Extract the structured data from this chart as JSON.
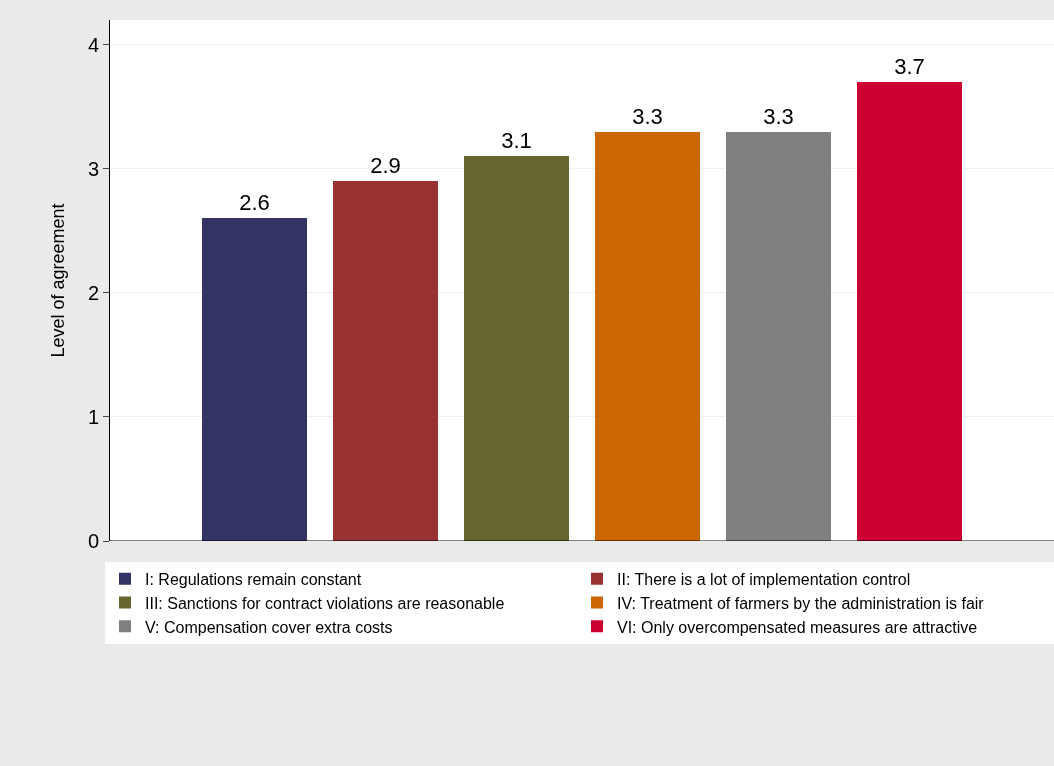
{
  "chart_data": {
    "type": "bar",
    "ylabel": "Level of agreement",
    "categories": [
      null
    ],
    "series": [
      {
        "name": "I: Regulations remain constant",
        "color": "#333366",
        "values": [
          2.6
        ]
      },
      {
        "name": "II: There is a lot of implementation control",
        "color": "#993333",
        "values": [
          2.9
        ]
      },
      {
        "name": "III: Sanctions for contract violations are reasonable",
        "color": "#666633",
        "values": [
          3.1
        ]
      },
      {
        "name": "IV: Treatment of farmers by the administration is fair",
        "color": "#cc6600",
        "values": [
          3.3
        ]
      },
      {
        "name": "V: Compensation cover extra costs",
        "color": "#808080",
        "values": [
          3.3
        ]
      },
      {
        "name": "VI: Only overcompensated measures are attractive",
        "color": "#cc0033",
        "values": [
          3.7
        ]
      }
    ],
    "ylim": [
      0,
      4.2
    ],
    "yticks": [
      0,
      1,
      2,
      3,
      4
    ],
    "grid": "y",
    "legend": "bottom",
    "data_labels": true
  }
}
